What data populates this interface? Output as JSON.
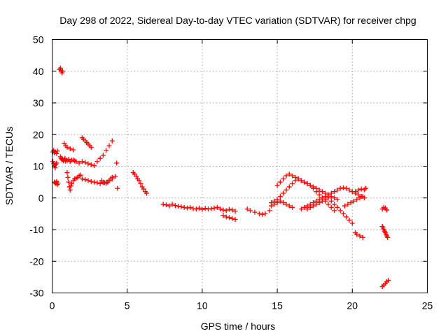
{
  "chart_data": {
    "type": "scatter",
    "title": "Day 298 of 2022, Sidereal Day-to-day VTEC variation (SDTVAR) for receiver chpg",
    "xlabel": "GPS time / hours",
    "ylabel": "SDTVAR / TECUs",
    "xlim": [
      0,
      25
    ],
    "ylim": [
      -30,
      50
    ],
    "xticks": [
      0,
      5,
      10,
      15,
      20,
      25
    ],
    "yticks": [
      -30,
      -20,
      -10,
      0,
      10,
      20,
      30,
      40,
      50
    ],
    "grid": true,
    "marker": "+",
    "color": "#ff0000",
    "series": [
      {
        "name": "SDTVAR",
        "x": [
          0.05,
          0.1,
          0.15,
          0.2,
          0.3,
          0.35,
          0.05,
          0.1,
          0.15,
          0.2,
          0.25,
          0.3,
          0.15,
          0.2,
          0.25,
          0.3,
          0.35,
          0.4,
          0.5,
          0.55,
          0.6,
          0.65,
          0.7,
          0.55,
          0.6,
          0.65,
          0.7,
          0.75,
          0.8,
          0.85,
          0.9,
          1.0,
          1.1,
          1.2,
          1.3,
          1.4,
          1.5,
          0.8,
          0.9,
          1.0,
          1.2,
          1.4,
          1.6,
          1.8,
          2.0,
          2.2,
          2.4,
          2.6,
          2.8,
          3.0,
          3.2,
          3.4,
          3.6,
          3.8,
          4.0,
          1.0,
          1.05,
          1.1,
          1.15,
          1.2,
          1.25,
          1.3,
          1.4,
          1.5,
          1.6,
          1.7,
          1.8,
          1.9,
          2.0,
          2.2,
          2.4,
          2.6,
          2.8,
          3.0,
          3.2,
          3.4,
          3.6,
          3.8,
          4.0,
          4.2,
          2.0,
          2.1,
          2.2,
          2.3,
          2.4,
          2.5,
          2.6,
          3.3,
          3.4,
          3.5,
          3.6,
          3.7,
          3.8,
          3.9,
          4.0,
          4.3,
          4.35,
          5.4,
          5.5,
          5.6,
          5.7,
          5.8,
          5.9,
          6.0,
          6.1,
          6.2,
          6.3,
          7.4,
          7.6,
          7.8,
          8.0,
          8.2,
          8.4,
          8.6,
          8.8,
          9.0,
          9.2,
          9.4,
          9.6,
          9.8,
          10.0,
          10.2,
          10.4,
          10.6,
          10.8,
          11.0,
          11.2,
          11.4,
          11.6,
          11.8,
          12.0,
          12.2,
          11.4,
          11.6,
          11.8,
          12.0,
          12.2,
          13.0,
          13.2,
          13.5,
          13.8,
          14.0,
          14.2,
          14.5,
          14.6,
          14.8,
          15.0,
          15.2,
          15.4,
          15.6,
          15.8,
          16.0,
          16.2,
          16.4,
          16.6,
          16.8,
          17.0,
          17.2,
          17.4,
          17.6,
          17.8,
          18.0,
          18.2,
          18.4,
          18.6,
          18.8,
          19.0,
          15.0,
          15.2,
          15.4,
          15.6,
          15.8,
          16.0,
          16.2,
          16.4,
          16.6,
          16.8,
          17.0,
          17.2,
          17.4,
          17.6,
          17.8,
          18.0,
          18.2,
          18.4,
          18.6,
          18.8,
          14.6,
          14.8,
          15.0,
          15.2,
          15.4,
          15.6,
          15.8,
          16.0,
          16.6,
          16.8,
          17.0,
          17.2,
          17.4,
          17.6,
          17.8,
          18.0,
          18.2,
          18.4,
          18.6,
          18.8,
          19.0,
          19.2,
          19.4,
          19.6,
          19.8,
          20.0,
          20.2,
          20.4,
          20.6,
          20.8,
          17.0,
          17.2,
          17.4,
          17.6,
          17.8,
          18.0,
          18.2,
          18.4,
          18.6,
          18.8,
          19.0,
          19.2,
          19.4,
          19.6,
          19.8,
          20.0,
          19.5,
          19.7,
          19.9,
          20.1,
          20.3,
          20.5,
          20.7,
          20.2,
          20.4,
          20.6,
          20.8,
          20.9,
          20.2,
          20.3,
          20.5,
          20.7,
          22.0,
          22.1,
          22.2,
          22.3,
          22.0,
          22.05,
          22.1,
          22.15,
          22.2,
          22.25,
          22.3,
          22.35,
          22.0,
          22.1,
          22.2,
          22.3,
          22.4
        ],
        "y": [
          14.5,
          15.0,
          14.2,
          14.6,
          14.0,
          14.8,
          11.5,
          10.8,
          10.2,
          9.5,
          10.5,
          11.0,
          5.0,
          4.8,
          4.5,
          5.2,
          4.2,
          4.7,
          40.5,
          41.0,
          40.2,
          39.5,
          40.0,
          13.0,
          12.5,
          12.0,
          12.2,
          11.8,
          12.0,
          12.5,
          11.6,
          11.8,
          12.2,
          11.5,
          11.9,
          12.0,
          11.7,
          17.2,
          16.5,
          16.0,
          15.5,
          15.2,
          11.5,
          11.0,
          11.5,
          11.2,
          10.8,
          10.5,
          10.2,
          11.5,
          12.5,
          13.5,
          15.0,
          16.5,
          18.0,
          8.0,
          6.5,
          5.0,
          3.5,
          2.5,
          3.8,
          4.5,
          5.5,
          6.0,
          6.2,
          6.5,
          7.0,
          7.2,
          6.0,
          5.8,
          5.5,
          5.2,
          5.0,
          4.8,
          4.5,
          4.8,
          5.0,
          5.5,
          6.0,
          6.8,
          19.0,
          18.5,
          18.0,
          17.5,
          17.0,
          16.5,
          16.0,
          5.5,
          5.0,
          4.8,
          4.6,
          5.0,
          5.5,
          6.0,
          6.5,
          11.0,
          3.0,
          8.0,
          7.5,
          6.8,
          6.0,
          5.5,
          4.5,
          3.5,
          2.8,
          2.0,
          1.5,
          -2.0,
          -2.2,
          -2.5,
          -2.0,
          -2.4,
          -2.6,
          -2.8,
          -3.0,
          -3.2,
          -3.0,
          -3.4,
          -3.5,
          -3.2,
          -3.6,
          -3.3,
          -3.5,
          -3.4,
          -3.2,
          -3.0,
          -3.5,
          -3.8,
          -4.0,
          -3.6,
          -3.8,
          -4.2,
          -5.5,
          -6.0,
          -6.2,
          -6.5,
          -6.8,
          -3.5,
          -4.0,
          -4.5,
          -5.0,
          -5.2,
          -5.0,
          -4.0,
          -1.5,
          -1.0,
          -0.5,
          0.5,
          1.5,
          2.5,
          3.5,
          4.5,
          5.5,
          6.0,
          5.5,
          5.0,
          4.5,
          4.0,
          3.5,
          3.0,
          2.5,
          2.0,
          1.5,
          1.0,
          0.5,
          0.0,
          -0.5,
          4.0,
          5.0,
          6.0,
          7.0,
          7.5,
          7.0,
          6.5,
          6.0,
          5.5,
          5.0,
          4.5,
          4.0,
          3.0,
          2.0,
          1.0,
          0.0,
          -1.0,
          -2.0,
          -3.0,
          -4.0,
          -2.5,
          -2.0,
          -1.5,
          -1.0,
          -1.5,
          -2.0,
          -2.5,
          -3.0,
          -3.5,
          -3.0,
          -2.5,
          -2.0,
          -1.5,
          -1.0,
          -0.5,
          0.0,
          0.5,
          1.0,
          1.5,
          2.0,
          2.5,
          3.0,
          3.2,
          3.0,
          2.5,
          2.0,
          1.5,
          1.0,
          0.5,
          0.0,
          -3.5,
          -3.0,
          -2.5,
          -2.0,
          -1.5,
          -1.0,
          -0.5,
          0.0,
          -1.0,
          -2.0,
          -3.0,
          -4.0,
          -5.0,
          -6.0,
          -7.0,
          -8.0,
          -2.5,
          -2.0,
          -1.5,
          -1.0,
          -0.5,
          0.0,
          0.5,
          2.0,
          2.5,
          2.8,
          2.6,
          3.0,
          -11.0,
          -11.5,
          -12.0,
          -12.5,
          -3.5,
          -3.0,
          -3.2,
          -3.8,
          -9.0,
          -9.5,
          -10.0,
          -10.5,
          -11.0,
          -11.5,
          -12.0,
          -12.5,
          -28.0,
          -27.5,
          -27.0,
          -26.5,
          -26.0
        ]
      }
    ]
  }
}
